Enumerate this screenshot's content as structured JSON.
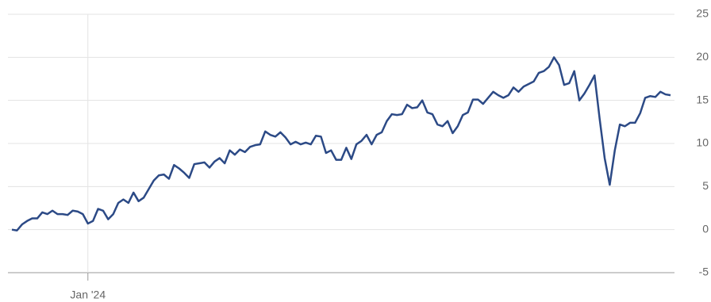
{
  "chart_data": {
    "type": "line",
    "categories": [
      null,
      null,
      null,
      null,
      null,
      null,
      null,
      null,
      null,
      null,
      null,
      null,
      null,
      null,
      null,
      "Jan '24",
      null,
      null,
      null,
      null,
      null,
      null,
      null,
      null,
      null,
      null,
      null,
      null,
      null,
      null,
      null,
      null,
      null,
      null,
      null,
      null,
      null,
      null,
      null,
      null,
      null,
      null,
      null,
      null,
      null,
      null,
      null,
      null,
      null,
      null,
      null,
      null,
      null,
      null,
      null,
      null,
      null,
      null,
      null,
      null,
      null,
      null,
      null,
      null,
      null,
      null,
      null,
      null,
      null,
      null,
      null,
      null,
      null,
      null,
      null,
      null,
      null,
      null,
      null,
      null,
      null,
      null,
      null,
      null,
      null,
      null,
      null,
      null,
      null,
      null,
      null,
      null,
      null,
      null,
      null,
      null,
      null,
      null,
      null,
      null,
      null,
      null,
      null,
      null,
      null,
      null,
      null,
      null,
      null,
      null,
      null,
      null,
      null,
      null,
      null,
      null,
      null,
      null,
      null,
      null,
      null,
      null,
      null,
      null,
      null,
      null,
      null,
      null,
      null,
      null,
      null
    ],
    "series": [
      {
        "color": "#2c4a86",
        "values": [
          0,
          -0.1,
          0.6,
          1.0,
          1.3,
          1.3,
          2.0,
          1.8,
          2.2,
          1.8,
          1.8,
          1.7,
          2.2,
          2.1,
          1.8,
          0.7,
          1.0,
          2.4,
          2.2,
          1.2,
          1.8,
          3.1,
          3.5,
          3.1,
          4.3,
          3.3,
          3.7,
          4.7,
          5.7,
          6.3,
          6.4,
          5.9,
          7.5,
          7.1,
          6.6,
          6.0,
          7.6,
          7.7,
          7.8,
          7.2,
          7.9,
          8.3,
          7.7,
          9.2,
          8.7,
          9.3,
          9.0,
          9.6,
          9.8,
          9.9,
          11.4,
          11.0,
          10.8,
          11.3,
          10.7,
          9.9,
          10.2,
          9.9,
          10.1,
          9.9,
          10.9,
          10.8,
          8.9,
          9.2,
          8.1,
          8.1,
          9.5,
          8.2,
          9.9,
          10.3,
          11.0,
          9.9,
          11.0,
          11.3,
          12.6,
          13.4,
          13.3,
          13.4,
          14.5,
          14.1,
          14.2,
          15.0,
          13.6,
          13.4,
          12.2,
          12.0,
          12.6,
          11.2,
          12.0,
          13.3,
          13.6,
          15.1,
          15.1,
          14.6,
          15.3,
          16.0,
          15.6,
          15.3,
          15.6,
          16.5,
          16.0,
          16.6,
          16.9,
          17.2,
          18.2,
          18.4,
          18.9,
          20.0,
          19.1,
          16.8,
          17.0,
          18.4,
          15.0,
          15.8,
          16.8,
          17.9,
          12.9,
          8.3,
          5.2,
          9.2,
          12.2,
          12.0,
          12.4,
          12.4,
          13.5,
          15.3,
          15.5,
          15.4,
          16.0,
          15.7,
          15.6
        ]
      }
    ],
    "ylim": [
      -5,
      25
    ],
    "yticks": [
      -5,
      0,
      5,
      10,
      15,
      20,
      25
    ],
    "grid": true
  }
}
